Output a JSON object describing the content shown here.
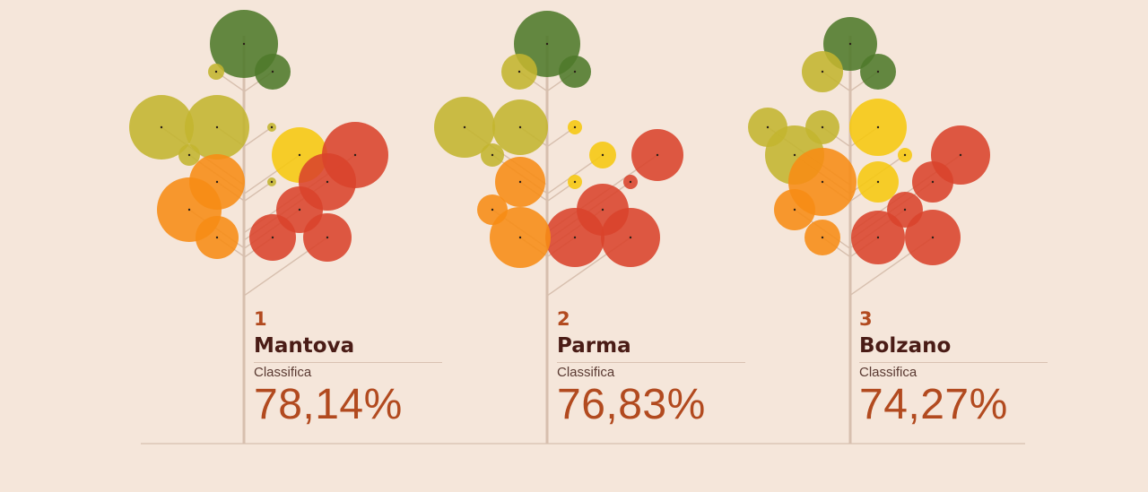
{
  "chart_data": {
    "type": "bubble-tree",
    "items": [
      {
        "rank": "1",
        "city": "Mantova",
        "label": "Classifica",
        "score": "78,14%"
      },
      {
        "rank": "2",
        "city": "Parma",
        "label": "Classifica",
        "score": "76,83%"
      },
      {
        "rank": "3",
        "city": "Bolzano",
        "label": "Classifica",
        "score": "74,27%"
      }
    ]
  },
  "colors": {
    "background": "#f5e6da",
    "trunk": "#d7bfae",
    "dark_green": "#4f7a2a",
    "olive": "#c3b52f",
    "yellow": "#f6c80f",
    "orange": "#f78c14",
    "red": "#d9432b",
    "rank_text": "#b24a1f",
    "city_text": "#4a1c16"
  }
}
